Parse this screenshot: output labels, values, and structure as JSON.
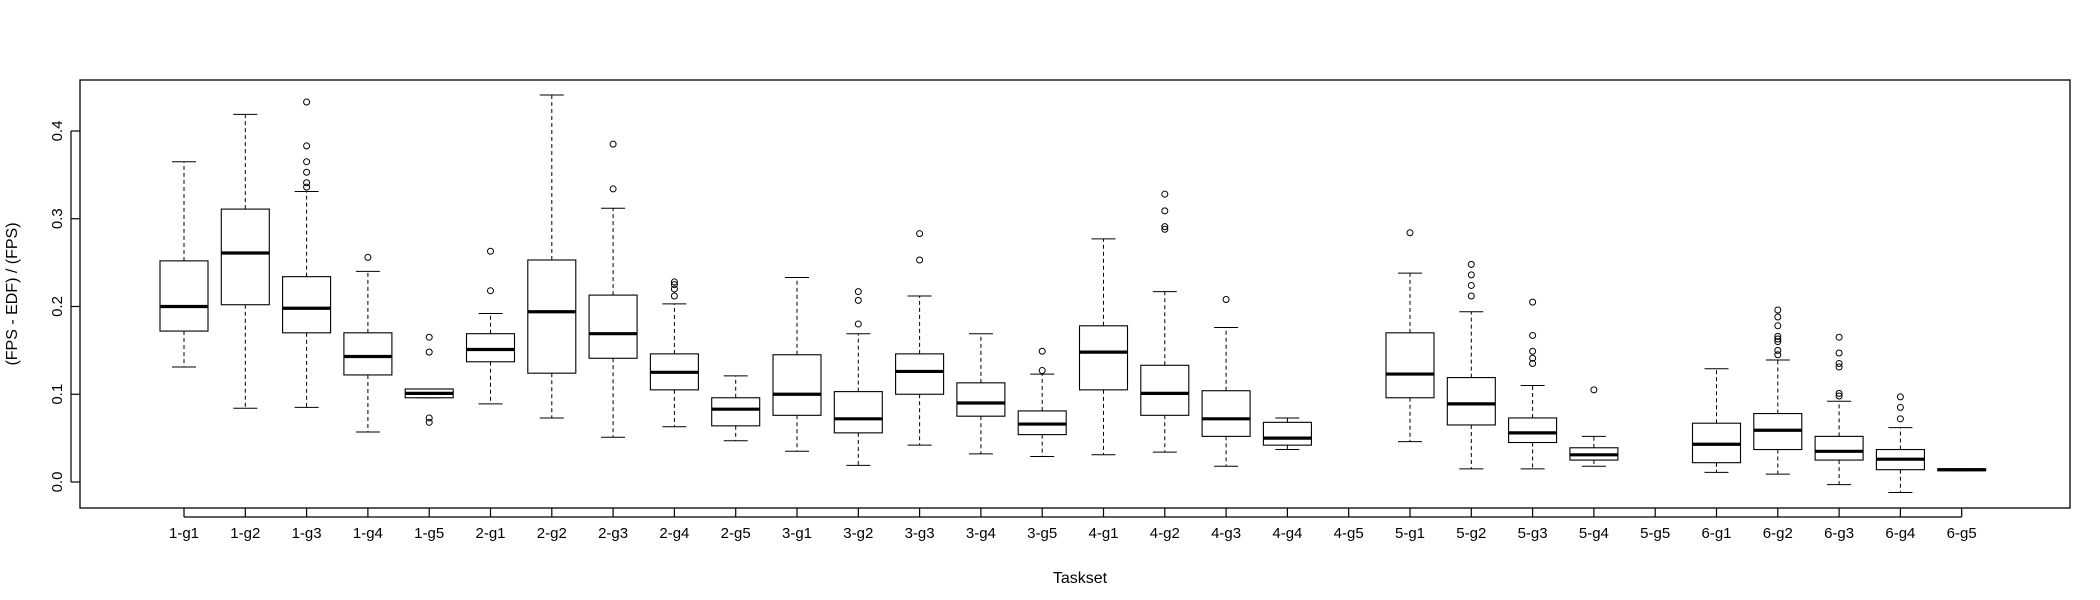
{
  "chart_data": {
    "type": "boxplot",
    "title": "",
    "xlabel": "Taskset",
    "ylabel": "(FPS - EDF) / (FPS)",
    "ylim": [
      -0.03,
      0.46
    ],
    "yticks": [
      "0.0",
      "0.1",
      "0.2",
      "0.3",
      "0.4"
    ],
    "ytick_values": [
      0.0,
      0.1,
      0.2,
      0.3,
      0.4
    ],
    "grid": false,
    "legend": "none",
    "boxes": [
      {
        "label": "1-g1",
        "lower_whisker": 0.131,
        "q1": 0.172,
        "median": 0.2,
        "q3": 0.252,
        "upper_whisker": 0.365,
        "outliers": []
      },
      {
        "label": "1-g2",
        "lower_whisker": 0.084,
        "q1": 0.202,
        "median": 0.261,
        "q3": 0.311,
        "upper_whisker": 0.419,
        "outliers": []
      },
      {
        "label": "1-g3",
        "lower_whisker": 0.085,
        "q1": 0.17,
        "median": 0.198,
        "q3": 0.234,
        "upper_whisker": 0.331,
        "outliers": [
          0.336,
          0.341,
          0.353,
          0.365,
          0.383,
          0.433
        ]
      },
      {
        "label": "1-g4",
        "lower_whisker": 0.057,
        "q1": 0.122,
        "median": 0.143,
        "q3": 0.17,
        "upper_whisker": 0.24,
        "outliers": [
          0.256
        ]
      },
      {
        "label": "1-g5",
        "lower_whisker": 0.096,
        "q1": 0.096,
        "median": 0.101,
        "q3": 0.106,
        "upper_whisker": 0.106,
        "outliers": [
          0.068,
          0.073,
          0.148,
          0.165
        ]
      },
      {
        "label": "2-g1",
        "lower_whisker": 0.089,
        "q1": 0.137,
        "median": 0.151,
        "q3": 0.169,
        "upper_whisker": 0.192,
        "outliers": [
          0.218,
          0.263
        ]
      },
      {
        "label": "2-g2",
        "lower_whisker": 0.073,
        "q1": 0.124,
        "median": 0.194,
        "q3": 0.253,
        "upper_whisker": 0.441,
        "outliers": []
      },
      {
        "label": "2-g3",
        "lower_whisker": 0.051,
        "q1": 0.141,
        "median": 0.169,
        "q3": 0.213,
        "upper_whisker": 0.312,
        "outliers": [
          0.334,
          0.385
        ]
      },
      {
        "label": "2-g4",
        "lower_whisker": 0.063,
        "q1": 0.105,
        "median": 0.125,
        "q3": 0.146,
        "upper_whisker": 0.203,
        "outliers": [
          0.212,
          0.22,
          0.225,
          0.228
        ]
      },
      {
        "label": "2-g5",
        "lower_whisker": 0.047,
        "q1": 0.064,
        "median": 0.083,
        "q3": 0.096,
        "upper_whisker": 0.121,
        "outliers": []
      },
      {
        "label": "3-g1",
        "lower_whisker": 0.035,
        "q1": 0.076,
        "median": 0.1,
        "q3": 0.145,
        "upper_whisker": 0.233,
        "outliers": []
      },
      {
        "label": "3-g2",
        "lower_whisker": 0.019,
        "q1": 0.056,
        "median": 0.072,
        "q3": 0.103,
        "upper_whisker": 0.169,
        "outliers": [
          0.18,
          0.207,
          0.217
        ]
      },
      {
        "label": "3-g3",
        "lower_whisker": 0.042,
        "q1": 0.1,
        "median": 0.126,
        "q3": 0.146,
        "upper_whisker": 0.212,
        "outliers": [
          0.253,
          0.283
        ]
      },
      {
        "label": "3-g4",
        "lower_whisker": 0.032,
        "q1": 0.075,
        "median": 0.09,
        "q3": 0.113,
        "upper_whisker": 0.169,
        "outliers": []
      },
      {
        "label": "3-g5",
        "lower_whisker": 0.029,
        "q1": 0.054,
        "median": 0.066,
        "q3": 0.081,
        "upper_whisker": 0.123,
        "outliers": [
          0.127,
          0.149
        ]
      },
      {
        "label": "4-g1",
        "lower_whisker": 0.031,
        "q1": 0.105,
        "median": 0.148,
        "q3": 0.178,
        "upper_whisker": 0.277,
        "outliers": []
      },
      {
        "label": "4-g2",
        "lower_whisker": 0.034,
        "q1": 0.076,
        "median": 0.101,
        "q3": 0.133,
        "upper_whisker": 0.217,
        "outliers": [
          0.288,
          0.291,
          0.309,
          0.328
        ]
      },
      {
        "label": "4-g3",
        "lower_whisker": 0.018,
        "q1": 0.052,
        "median": 0.072,
        "q3": 0.104,
        "upper_whisker": 0.176,
        "outliers": [
          0.208
        ]
      },
      {
        "label": "4-g4",
        "lower_whisker": 0.037,
        "q1": 0.042,
        "median": 0.05,
        "q3": 0.068,
        "upper_whisker": 0.073,
        "outliers": []
      },
      {
        "label": "4-g5",
        "lower_whisker": null,
        "q1": null,
        "median": null,
        "q3": null,
        "upper_whisker": null,
        "outliers": []
      },
      {
        "label": "5-g1",
        "lower_whisker": 0.046,
        "q1": 0.096,
        "median": 0.123,
        "q3": 0.17,
        "upper_whisker": 0.238,
        "outliers": [
          0.284
        ]
      },
      {
        "label": "5-g2",
        "lower_whisker": 0.015,
        "q1": 0.065,
        "median": 0.089,
        "q3": 0.119,
        "upper_whisker": 0.194,
        "outliers": [
          0.212,
          0.224,
          0.236,
          0.248
        ]
      },
      {
        "label": "5-g3",
        "lower_whisker": 0.015,
        "q1": 0.045,
        "median": 0.056,
        "q3": 0.073,
        "upper_whisker": 0.11,
        "outliers": [
          0.135,
          0.141,
          0.149,
          0.167,
          0.205
        ]
      },
      {
        "label": "5-g4",
        "lower_whisker": 0.018,
        "q1": 0.025,
        "median": 0.031,
        "q3": 0.039,
        "upper_whisker": 0.052,
        "outliers": [
          0.105
        ]
      },
      {
        "label": "5-g5",
        "lower_whisker": null,
        "q1": null,
        "median": null,
        "q3": null,
        "upper_whisker": null,
        "outliers": []
      },
      {
        "label": "6-g1",
        "lower_whisker": 0.011,
        "q1": 0.022,
        "median": 0.043,
        "q3": 0.067,
        "upper_whisker": 0.129,
        "outliers": []
      },
      {
        "label": "6-g2",
        "lower_whisker": 0.009,
        "q1": 0.037,
        "median": 0.059,
        "q3": 0.078,
        "upper_whisker": 0.139,
        "outliers": [
          0.145,
          0.15,
          0.16,
          0.163,
          0.166,
          0.178,
          0.188,
          0.196
        ]
      },
      {
        "label": "6-g3",
        "lower_whisker": -0.003,
        "q1": 0.025,
        "median": 0.035,
        "q3": 0.052,
        "upper_whisker": 0.092,
        "outliers": [
          0.098,
          0.101,
          0.131,
          0.135,
          0.147,
          0.165
        ]
      },
      {
        "label": "6-g4",
        "lower_whisker": -0.012,
        "q1": 0.014,
        "median": 0.026,
        "q3": 0.037,
        "upper_whisker": 0.062,
        "outliers": [
          0.072,
          0.085,
          0.097
        ]
      },
      {
        "label": "6-g5",
        "lower_whisker": 0.013,
        "q1": 0.013,
        "median": 0.014,
        "q3": 0.015,
        "upper_whisker": 0.015,
        "outliers": []
      }
    ]
  }
}
